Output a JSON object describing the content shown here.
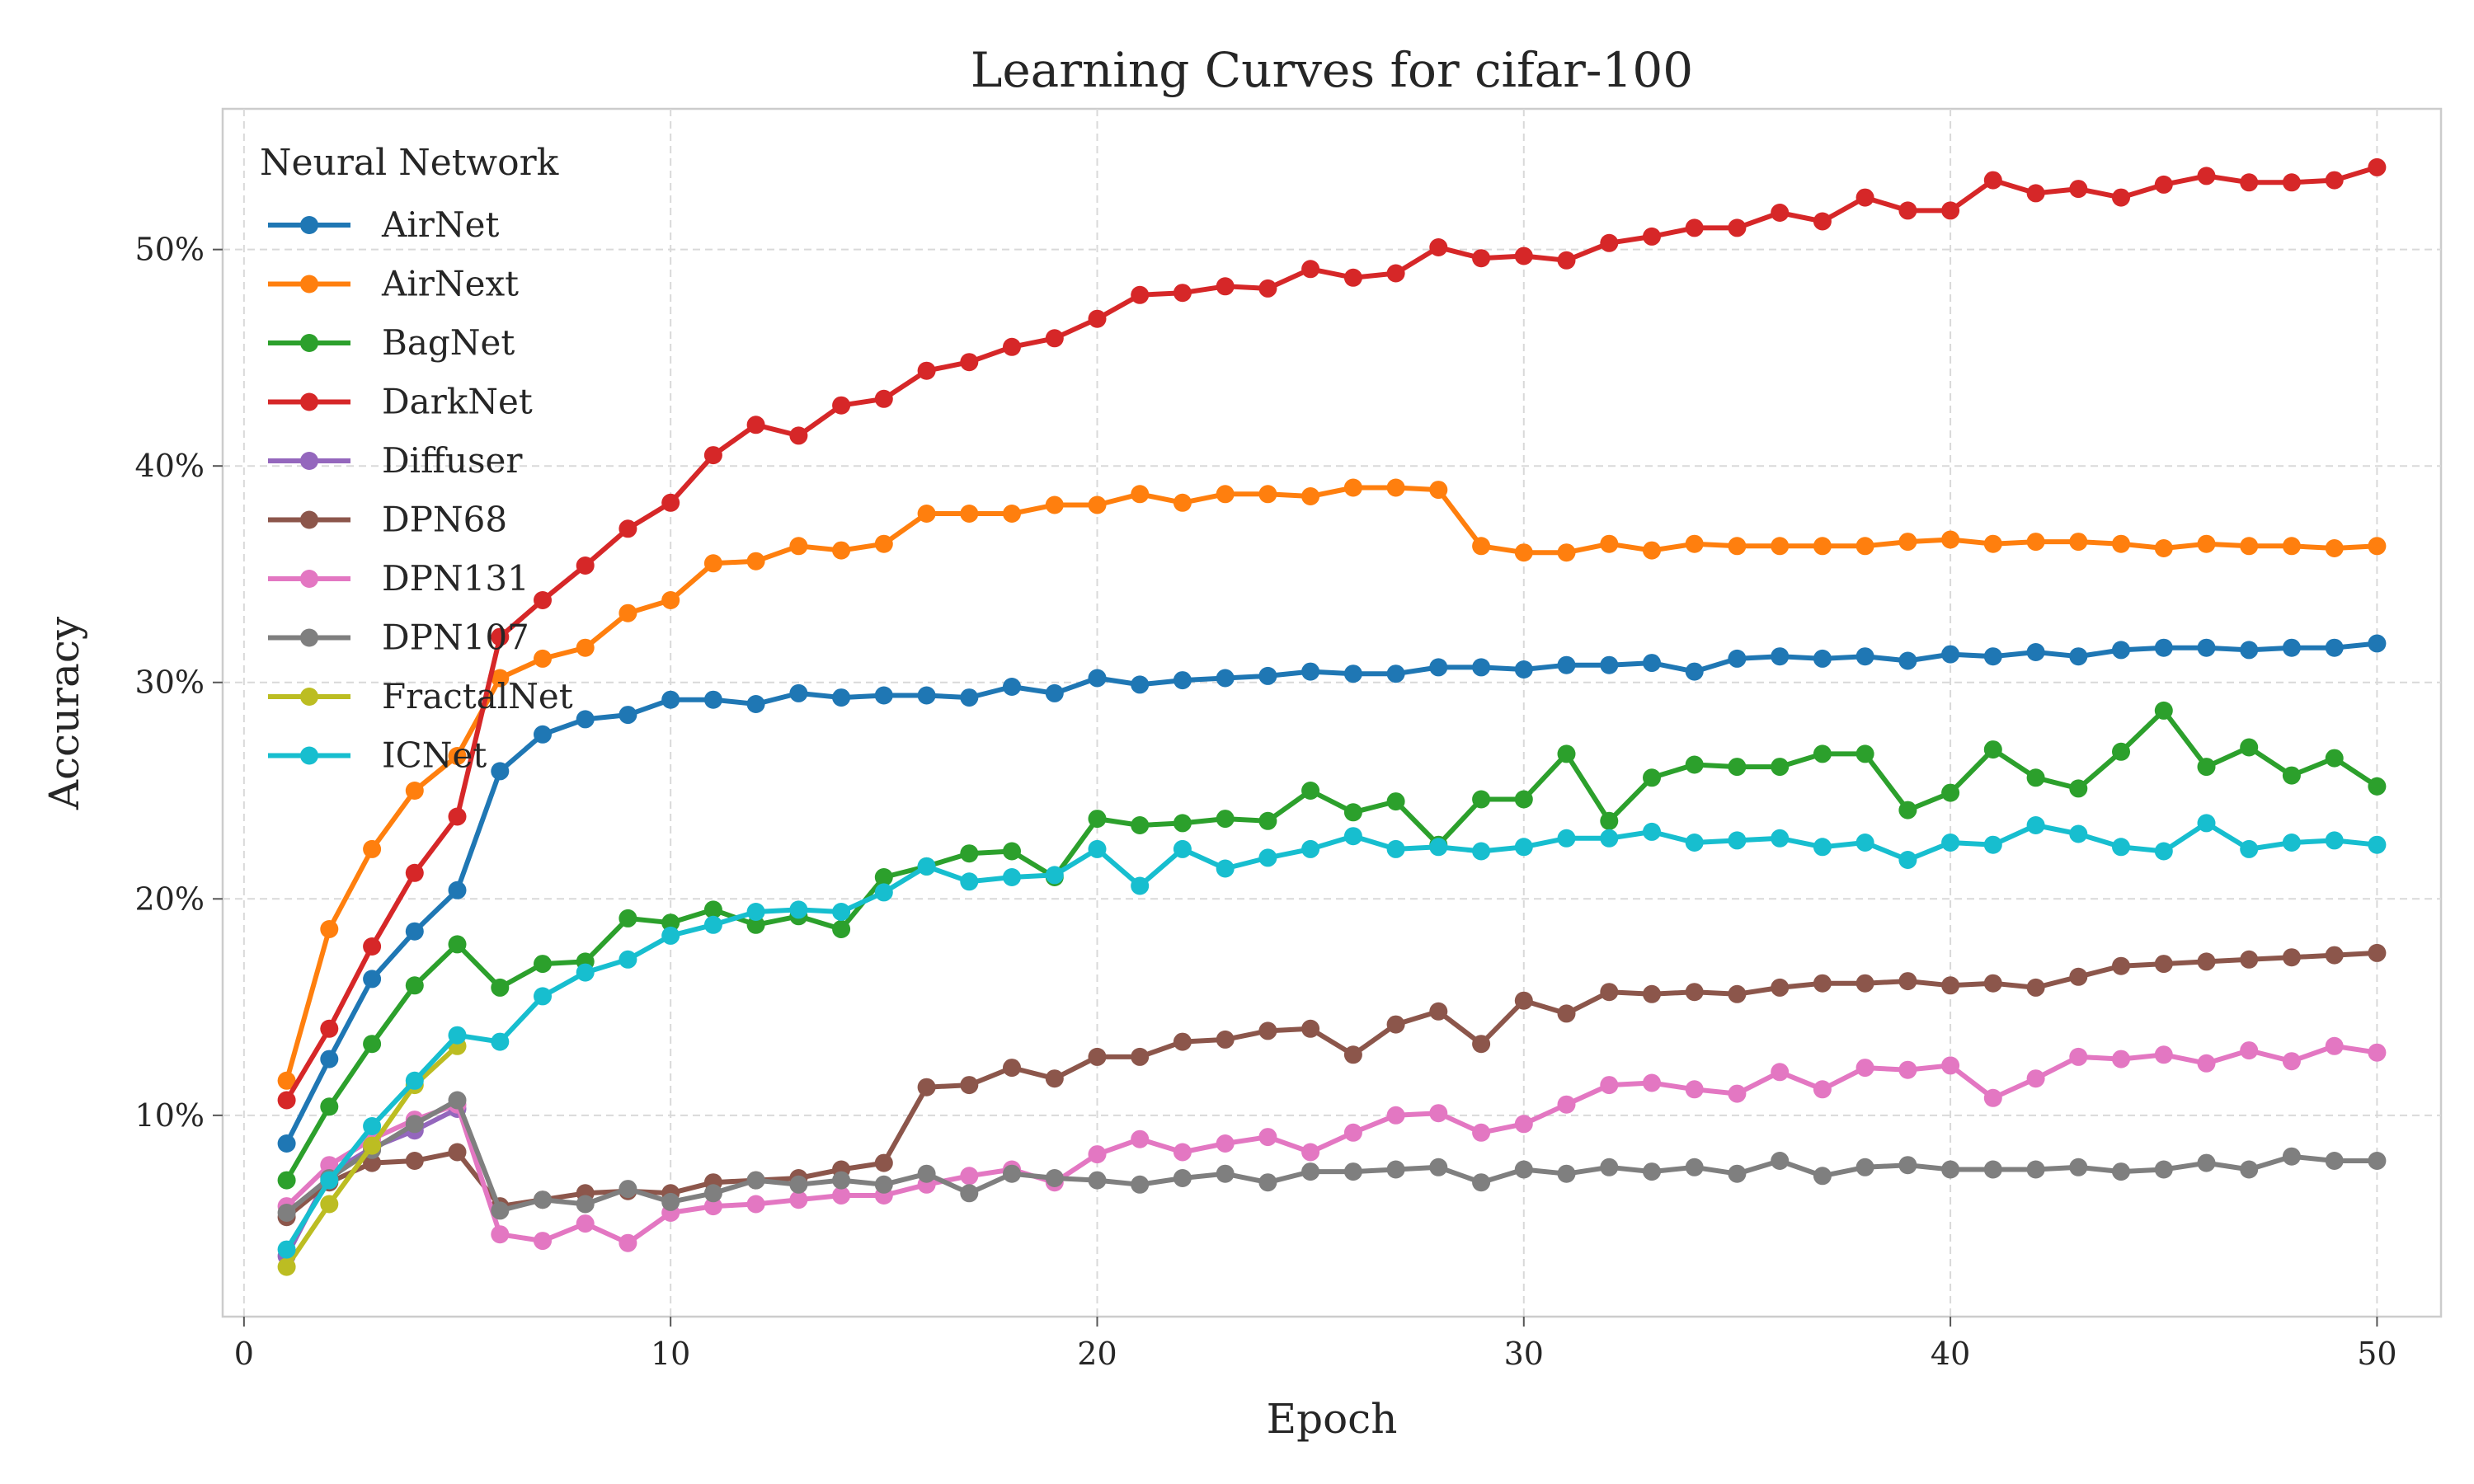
{
  "chart_data": {
    "type": "line",
    "title": "Learning Curves for cifar-100",
    "xlabel": "Epoch",
    "ylabel": "Accuracy",
    "xlim": [
      -0.5,
      51.5
    ],
    "ylim": [
      0.7,
      56.5
    ],
    "xticks": [
      0,
      10,
      20,
      30,
      40,
      50
    ],
    "yticks": [
      10,
      20,
      30,
      40,
      50
    ],
    "ytick_format": "percent",
    "grid": true,
    "legend": {
      "title": "Neural Network",
      "placement": "top-left"
    },
    "series": [
      {
        "name": "AirNet",
        "color": "#1f77b4",
        "x": [
          1,
          2,
          3,
          4,
          5,
          6,
          7,
          8,
          9,
          10,
          11,
          12,
          13,
          14,
          15,
          16,
          17,
          18,
          19,
          20,
          21,
          22,
          23,
          24,
          25,
          26,
          27,
          28,
          29,
          30,
          31,
          32,
          33,
          34,
          35,
          36,
          37,
          38,
          39,
          40,
          41,
          42,
          43,
          44,
          45,
          46,
          47,
          48,
          49,
          50
        ],
        "values": [
          8.7,
          12.6,
          16.3,
          18.5,
          20.4,
          25.9,
          27.6,
          28.3,
          28.5,
          29.2,
          29.2,
          29.0,
          29.5,
          29.3,
          29.4,
          29.4,
          29.3,
          29.8,
          29.5,
          30.2,
          29.9,
          30.1,
          30.2,
          30.3,
          30.5,
          30.4,
          30.4,
          30.7,
          30.7,
          30.6,
          30.8,
          30.8,
          30.9,
          30.5,
          31.1,
          31.2,
          31.1,
          31.2,
          31.0,
          31.3,
          31.2,
          31.4,
          31.2,
          31.5,
          31.6,
          31.6,
          31.5,
          31.6,
          31.6,
          31.8
        ]
      },
      {
        "name": "AirNext",
        "color": "#ff7f0e",
        "x": [
          1,
          2,
          3,
          4,
          5,
          6,
          7,
          8,
          9,
          10,
          11,
          12,
          13,
          14,
          15,
          16,
          17,
          18,
          19,
          20,
          21,
          22,
          23,
          24,
          25,
          26,
          27,
          28,
          29,
          30,
          31,
          32,
          33,
          34,
          35,
          36,
          37,
          38,
          39,
          40,
          41,
          42,
          43,
          44,
          45,
          46,
          47,
          48,
          49,
          50
        ],
        "values": [
          11.6,
          18.6,
          22.3,
          25.0,
          26.6,
          30.2,
          31.1,
          31.6,
          33.2,
          33.8,
          35.5,
          35.6,
          36.3,
          36.1,
          36.4,
          37.8,
          37.8,
          37.8,
          38.2,
          38.2,
          38.7,
          38.3,
          38.7,
          38.7,
          38.6,
          39.0,
          39.0,
          38.9,
          36.3,
          36.0,
          36.0,
          36.4,
          36.1,
          36.4,
          36.3,
          36.3,
          36.3,
          36.3,
          36.5,
          36.6,
          36.4,
          36.5,
          36.5,
          36.4,
          36.2,
          36.4,
          36.3,
          36.3,
          36.2,
          36.3
        ]
      },
      {
        "name": "BagNet",
        "color": "#2ca02c",
        "x": [
          1,
          2,
          3,
          4,
          5,
          6,
          7,
          8,
          9,
          10,
          11,
          12,
          13,
          14,
          15,
          16,
          17,
          18,
          19,
          20,
          21,
          22,
          23,
          24,
          25,
          26,
          27,
          28,
          29,
          30,
          31,
          32,
          33,
          34,
          35,
          36,
          37,
          38,
          39,
          40,
          41,
          42,
          43,
          44,
          45,
          46,
          47,
          48,
          49,
          50
        ],
        "values": [
          7.0,
          10.4,
          13.3,
          16.0,
          17.9,
          15.9,
          17.0,
          17.1,
          19.1,
          18.9,
          19.5,
          18.8,
          19.2,
          18.6,
          21.0,
          21.5,
          22.1,
          22.2,
          21.0,
          23.7,
          23.4,
          23.5,
          23.7,
          23.6,
          25.0,
          24.0,
          24.5,
          22.5,
          24.6,
          24.6,
          26.7,
          23.6,
          25.6,
          26.2,
          26.1,
          26.1,
          26.7,
          26.7,
          24.1,
          24.9,
          26.9,
          25.6,
          25.1,
          26.8,
          28.7,
          26.1,
          27.0,
          25.7,
          26.5,
          25.2
        ]
      },
      {
        "name": "DarkNet",
        "color": "#d62728",
        "x": [
          1,
          2,
          3,
          4,
          5,
          6,
          7,
          8,
          9,
          10,
          11,
          12,
          13,
          14,
          15,
          16,
          17,
          18,
          19,
          20,
          21,
          22,
          23,
          24,
          25,
          26,
          27,
          28,
          29,
          30,
          31,
          32,
          33,
          34,
          35,
          36,
          37,
          38,
          39,
          40,
          41,
          42,
          43,
          44,
          45,
          46,
          47,
          48,
          49,
          50
        ],
        "values": [
          10.7,
          14.0,
          17.8,
          21.2,
          23.8,
          32.1,
          33.8,
          35.4,
          37.1,
          38.3,
          40.5,
          41.9,
          41.4,
          42.8,
          43.1,
          44.4,
          44.8,
          45.5,
          45.9,
          46.8,
          47.9,
          48.0,
          48.3,
          48.2,
          49.1,
          48.7,
          48.9,
          50.1,
          49.6,
          49.7,
          49.5,
          50.3,
          50.6,
          51.0,
          51.0,
          51.7,
          51.3,
          52.4,
          51.8,
          51.8,
          53.2,
          52.6,
          52.8,
          52.4,
          53.0,
          53.4,
          53.1,
          53.1,
          53.2,
          53.8
        ]
      },
      {
        "name": "Diffuser",
        "color": "#9467bd",
        "x": [
          1,
          2,
          3,
          4,
          5
        ],
        "values": [
          3.5,
          7.3,
          8.5,
          9.3,
          10.3
        ]
      },
      {
        "name": "DPN68",
        "color": "#8c564b",
        "x": [
          1,
          2,
          3,
          4,
          5,
          6,
          7,
          8,
          9,
          10,
          11,
          12,
          13,
          14,
          15,
          16,
          17,
          18,
          19,
          20,
          21,
          22,
          23,
          24,
          25,
          26,
          27,
          28,
          29,
          30,
          31,
          32,
          33,
          34,
          35,
          36,
          37,
          38,
          39,
          40,
          41,
          42,
          43,
          44,
          45,
          46,
          47,
          48,
          49,
          50
        ],
        "values": [
          5.3,
          6.9,
          7.8,
          7.9,
          8.3,
          5.8,
          6.1,
          6.4,
          6.5,
          6.4,
          6.9,
          7.0,
          7.1,
          7.5,
          7.8,
          11.3,
          11.4,
          12.2,
          11.7,
          12.7,
          12.7,
          13.4,
          13.5,
          13.9,
          14.0,
          12.8,
          14.2,
          14.8,
          13.3,
          15.3,
          14.7,
          15.7,
          15.6,
          15.7,
          15.6,
          15.9,
          16.1,
          16.1,
          16.2,
          16.0,
          16.1,
          15.9,
          16.4,
          16.9,
          17.0,
          17.1,
          17.2,
          17.3,
          17.4,
          17.5
        ]
      },
      {
        "name": "DPN131",
        "color": "#e377c2",
        "x": [
          1,
          2,
          3,
          4,
          5,
          6,
          7,
          8,
          9,
          10,
          11,
          12,
          13,
          14,
          15,
          16,
          17,
          18,
          19,
          20,
          21,
          22,
          23,
          24,
          25,
          26,
          27,
          28,
          29,
          30,
          31,
          32,
          33,
          34,
          35,
          36,
          37,
          38,
          39,
          40,
          41,
          42,
          43,
          44,
          45,
          46,
          47,
          48,
          49,
          50
        ],
        "values": [
          5.8,
          7.7,
          8.9,
          9.8,
          10.5,
          4.5,
          4.2,
          5.0,
          4.1,
          5.5,
          5.8,
          5.9,
          6.1,
          6.3,
          6.3,
          6.8,
          7.2,
          7.5,
          6.9,
          8.2,
          8.9,
          8.3,
          8.7,
          9.0,
          8.3,
          9.2,
          10.0,
          10.1,
          9.2,
          9.6,
          10.5,
          11.4,
          11.5,
          11.2,
          11.0,
          12.0,
          11.2,
          12.2,
          12.1,
          12.3,
          10.8,
          11.7,
          12.7,
          12.6,
          12.8,
          12.4,
          13.0,
          12.5,
          13.2,
          12.9
        ]
      },
      {
        "name": "DPN107",
        "color": "#7f7f7f",
        "x": [
          1,
          2,
          3,
          4,
          5,
          6,
          7,
          8,
          9,
          10,
          11,
          12,
          13,
          14,
          15,
          16,
          17,
          18,
          19,
          20,
          21,
          22,
          23,
          24,
          25,
          26,
          27,
          28,
          29,
          30,
          31,
          32,
          33,
          34,
          35,
          36,
          37,
          38,
          39,
          40,
          41,
          42,
          43,
          44,
          45,
          46,
          47,
          48,
          49,
          50
        ],
        "values": [
          5.5,
          7.1,
          8.4,
          9.6,
          10.7,
          5.6,
          6.1,
          5.9,
          6.6,
          6.0,
          6.4,
          7.0,
          6.8,
          7.0,
          6.8,
          7.3,
          6.4,
          7.3,
          7.1,
          7.0,
          6.8,
          7.1,
          7.3,
          6.9,
          7.4,
          7.4,
          7.5,
          7.6,
          6.9,
          7.5,
          7.3,
          7.6,
          7.4,
          7.6,
          7.3,
          7.9,
          7.2,
          7.6,
          7.7,
          7.5,
          7.5,
          7.5,
          7.6,
          7.4,
          7.5,
          7.8,
          7.5,
          8.1,
          7.9,
          7.9
        ]
      },
      {
        "name": "FractalNet",
        "color": "#bcbd22",
        "x": [
          1,
          2,
          3,
          4,
          5
        ],
        "values": [
          3.0,
          5.9,
          8.6,
          11.4,
          13.2
        ]
      },
      {
        "name": "ICNet",
        "color": "#17becf",
        "x": [
          1,
          2,
          3,
          4,
          5,
          6,
          7,
          8,
          9,
          10,
          11,
          12,
          13,
          14,
          15,
          16,
          17,
          18,
          19,
          20,
          21,
          22,
          23,
          24,
          25,
          26,
          27,
          28,
          29,
          30,
          31,
          32,
          33,
          34,
          35,
          36,
          37,
          38,
          39,
          40,
          41,
          42,
          43,
          44,
          45,
          46,
          47,
          48,
          49,
          50
        ],
        "values": [
          3.8,
          7.0,
          9.5,
          11.6,
          13.7,
          13.4,
          15.5,
          16.6,
          17.2,
          18.3,
          18.8,
          19.4,
          19.5,
          19.4,
          20.3,
          21.5,
          20.8,
          21.0,
          21.1,
          22.3,
          20.6,
          22.3,
          21.4,
          21.9,
          22.3,
          22.9,
          22.3,
          22.4,
          22.2,
          22.4,
          22.8,
          22.8,
          23.1,
          22.6,
          22.7,
          22.8,
          22.4,
          22.6,
          21.8,
          22.6,
          22.5,
          23.4,
          23.0,
          22.4,
          22.2,
          23.5,
          22.3,
          22.6,
          22.7,
          22.5
        ]
      }
    ]
  }
}
